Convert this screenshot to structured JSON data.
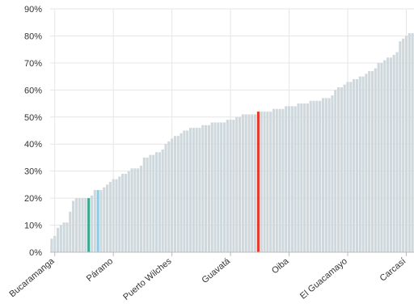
{
  "chart_data": {
    "type": "bar",
    "title": "",
    "xlabel": "",
    "ylabel": "",
    "ylim": [
      0,
      90
    ],
    "y_tick_format": "percent",
    "y_ticks": [
      "0%",
      "10%",
      "20%",
      "30%",
      "40%",
      "50%",
      "60%",
      "70%",
      "80%",
      "90%"
    ],
    "grid": true,
    "x_tick_labels": [
      "Bucaramanga",
      "Páramo",
      "Puerto Wilches",
      "Guavatá",
      "Oiba",
      "El Guacamayo",
      "Carcasí"
    ],
    "x_tick_positions": [
      1,
      20,
      39,
      58,
      77,
      96,
      115
    ],
    "colors": {
      "default": "#cfd8dc",
      "highlight_red": "#e8392c",
      "highlight_teal": "#3aa88f",
      "highlight_blue": "#8ec9e6"
    },
    "highlights": {
      "12": "highlight_teal",
      "15": "highlight_blue",
      "67": "highlight_red"
    },
    "values": [
      5,
      6,
      9,
      10,
      11,
      11,
      15,
      19,
      20,
      20,
      20,
      20,
      20,
      21,
      23,
      23,
      23,
      24,
      25,
      26,
      27,
      27,
      28,
      29,
      29,
      30,
      31,
      31,
      31,
      32,
      35,
      35,
      36,
      36,
      37,
      37,
      38,
      40,
      41,
      42,
      43,
      43,
      44,
      45,
      45,
      46,
      46,
      46,
      46,
      47,
      47,
      47,
      48,
      48,
      48,
      48,
      48,
      49,
      49,
      49,
      50,
      50,
      51,
      51,
      51,
      51,
      51,
      52,
      52,
      52,
      52,
      52,
      53,
      53,
      53,
      53,
      54,
      54,
      54,
      54,
      55,
      55,
      55,
      55,
      56,
      56,
      56,
      56,
      57,
      57,
      57,
      58,
      60,
      61,
      61,
      62,
      63,
      63,
      64,
      64,
      65,
      65,
      66,
      67,
      67,
      68,
      70,
      70,
      71,
      72,
      72,
      73,
      74,
      78,
      79,
      80,
      81,
      81
    ]
  }
}
